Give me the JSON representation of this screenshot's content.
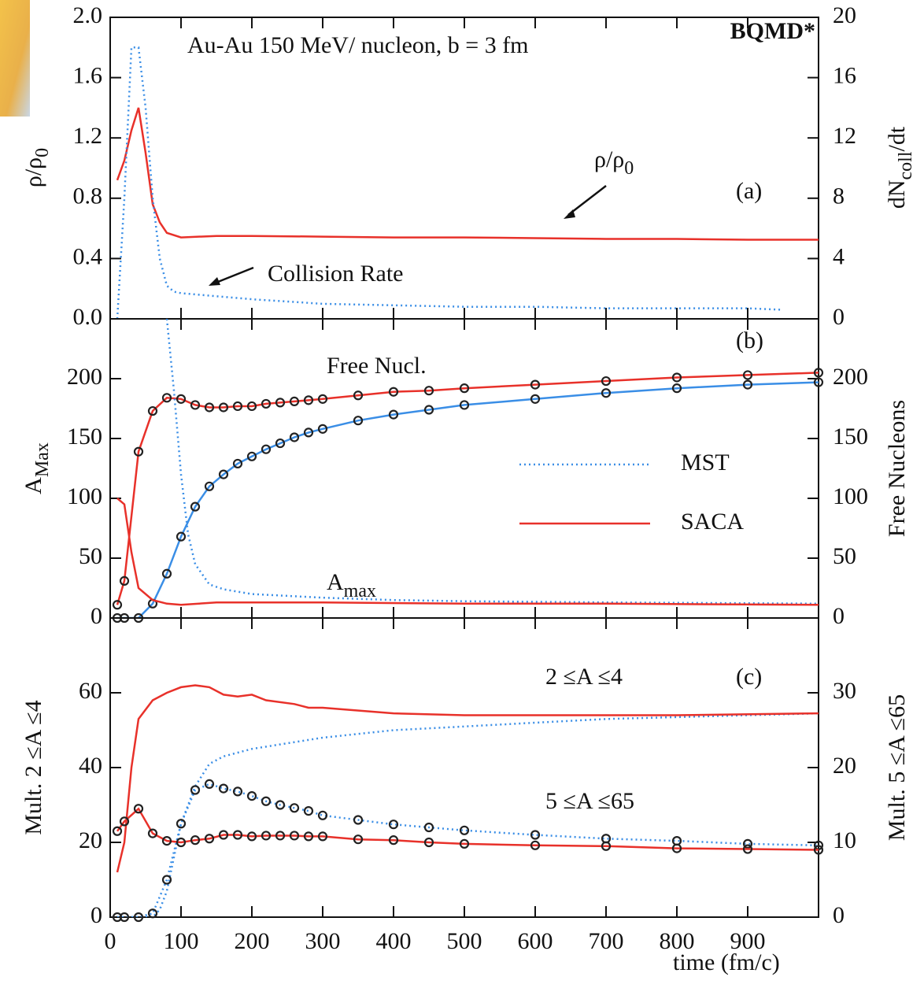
{
  "chart_data": [
    {
      "type": "line",
      "panel": "(a)",
      "title": "Au-Au 150 MeV/ nucleon, b = 3 fm",
      "badge": "BQMD*",
      "ylabel": [
        "ρ/ρ",
        "0"
      ],
      "y2label": [
        "dN",
        "coll",
        "/dt"
      ],
      "xlim": [
        0,
        1000
      ],
      "ylim": [
        0,
        2
      ],
      "yticks": [
        {
          "value": 0,
          "label": "0.0"
        },
        0.4,
        0.8,
        1.2,
        1.6,
        {
          "value": 2,
          "label": "2.0"
        }
      ],
      "y2lim": [
        0,
        20
      ],
      "y2ticks": [
        0,
        4,
        8,
        12,
        16,
        20
      ],
      "annotations": [
        [
          "ρ/ρ",
          "0"
        ],
        [
          "Collision Rate"
        ]
      ],
      "series": [
        {
          "color": "#e8312a",
          "style": "solid",
          "markers": false,
          "x": [
            10,
            20,
            30,
            40,
            50,
            60,
            70,
            80,
            100,
            150,
            200,
            300,
            400,
            500,
            600,
            700,
            800,
            900,
            1000
          ],
          "values": [
            0.92,
            1.05,
            1.25,
            1.4,
            1.1,
            0.76,
            0.64,
            0.57,
            0.54,
            0.55,
            0.55,
            0.545,
            0.54,
            0.54,
            0.535,
            0.53,
            0.53,
            0.525,
            0.525
          ]
        },
        {
          "color": "#3a8ee6",
          "style": "dotted",
          "markers": false,
          "axis": "y2",
          "x": [
            10,
            20,
            30,
            40,
            50,
            60,
            70,
            80,
            90,
            100,
            150,
            200,
            300,
            400,
            500,
            600,
            700,
            800,
            900,
            950
          ],
          "values": [
            0,
            8,
            18,
            18,
            14,
            8,
            4,
            2.2,
            1.8,
            1.7,
            1.5,
            1.3,
            1.0,
            0.9,
            0.8,
            0.8,
            0.7,
            0.7,
            0.7,
            0.6
          ]
        }
      ]
    },
    {
      "type": "line",
      "panel": "(b)",
      "ylabel": [
        "A",
        "Max"
      ],
      "y2label": [
        "Free Nucleons"
      ],
      "xlim": [
        0,
        1000
      ],
      "ylim": [
        0,
        250
      ],
      "yticks": [
        0,
        50,
        100,
        150,
        200
      ],
      "y2lim": [
        0,
        250
      ],
      "y2ticks": [
        0,
        50,
        100,
        150,
        200
      ],
      "annotations": [
        [
          "Free Nucl."
        ],
        [
          "A",
          "max"
        ]
      ],
      "legend": [
        {
          "name": "MST",
          "color": "#3a8ee6",
          "style": "dotted"
        },
        {
          "name": "SACA",
          "color": "#e8312a",
          "style": "solid"
        }
      ],
      "series": [
        {
          "color": "#3a8ee6",
          "style": "solid",
          "markers": true,
          "x": [
            10,
            20,
            40,
            60,
            80,
            100,
            120,
            140,
            160,
            180,
            200,
            220,
            240,
            260,
            280,
            300,
            350,
            400,
            450,
            500,
            600,
            700,
            800,
            900,
            1000
          ],
          "values": [
            0,
            0,
            0,
            12,
            37,
            68,
            93,
            110,
            120,
            129,
            135,
            141,
            146,
            151,
            155,
            158,
            165,
            170,
            174,
            178,
            183,
            188,
            192,
            195,
            197
          ]
        },
        {
          "color": "#e8312a",
          "style": "solid",
          "markers": true,
          "x": [
            10,
            20,
            40,
            60,
            80,
            100,
            120,
            140,
            160,
            180,
            200,
            220,
            240,
            260,
            280,
            300,
            350,
            400,
            450,
            500,
            600,
            700,
            800,
            900,
            1000
          ],
          "values": [
            11,
            31,
            139,
            173,
            184,
            183,
            178,
            176,
            176,
            177,
            177,
            179,
            180,
            181,
            182,
            183,
            186,
            189,
            190,
            192,
            195,
            198,
            201,
            203,
            205
          ]
        },
        {
          "color": "#3a8ee6",
          "style": "dotted",
          "markers": false,
          "axis": "y2",
          "x": [
            80,
            90,
            100,
            110,
            120,
            140,
            160,
            200,
            300,
            400,
            500,
            700,
            1000
          ],
          "values": [
            250,
            190,
            120,
            70,
            45,
            28,
            24,
            20,
            17,
            15,
            14,
            13,
            12
          ]
        },
        {
          "color": "#e8312a",
          "style": "solid",
          "markers": false,
          "axis": "y2",
          "x": [
            10,
            20,
            30,
            40,
            60,
            80,
            100,
            150,
            200,
            300,
            500,
            700,
            1000
          ],
          "values": [
            100,
            95,
            55,
            25,
            15,
            12,
            11,
            13,
            13,
            13,
            12,
            12,
            11
          ]
        }
      ]
    },
    {
      "type": "line",
      "panel": "(c)",
      "ylabel": [
        "Mult. 2 ≤A ≤4"
      ],
      "y2label": [
        "Mult. 5 ≤A ≤65"
      ],
      "xlabel": "time (fm/c)",
      "xlim": [
        0,
        1000
      ],
      "xticks": [
        0,
        100,
        200,
        300,
        400,
        500,
        600,
        700,
        800,
        900
      ],
      "ylim": [
        0,
        80
      ],
      "yticks": [
        0,
        20,
        40,
        60
      ],
      "y2lim": [
        0,
        40
      ],
      "y2ticks": [
        0,
        10,
        20,
        30
      ],
      "annotations": [
        [
          "2 ≤A ≤4"
        ],
        [
          "5 ≤A ≤65"
        ]
      ],
      "series": [
        {
          "color": "#3a8ee6",
          "style": "dotted",
          "markers": false,
          "x": [
            10,
            40,
            60,
            70,
            80,
            90,
            100,
            120,
            140,
            160,
            200,
            300,
            400,
            500,
            600,
            700,
            800,
            900,
            1000
          ],
          "values": [
            0,
            0,
            0,
            2,
            7,
            16,
            25,
            35,
            41,
            43,
            45,
            48,
            50,
            51,
            52,
            53,
            53.5,
            54,
            54.5
          ]
        },
        {
          "color": "#e8312a",
          "style": "solid",
          "markers": false,
          "x": [
            10,
            20,
            30,
            40,
            60,
            80,
            100,
            120,
            140,
            160,
            180,
            200,
            220,
            260,
            280,
            300,
            400,
            500,
            600,
            800,
            1000
          ],
          "values": [
            12,
            20,
            40,
            53,
            58,
            60,
            61.5,
            62,
            61.5,
            59.5,
            59,
            59.5,
            58,
            57,
            56,
            56,
            54.5,
            54,
            54,
            54,
            54.5
          ]
        },
        {
          "color": "#3a8ee6",
          "style": "dotted",
          "markers": true,
          "axis": "y2",
          "x": [
            10,
            20,
            40,
            60,
            80,
            100,
            120,
            140,
            160,
            180,
            200,
            220,
            240,
            260,
            280,
            300,
            350,
            400,
            450,
            500,
            600,
            700,
            800,
            900,
            1000
          ],
          "values": [
            0,
            0,
            0,
            0.5,
            5,
            12.5,
            17,
            17.8,
            17.2,
            16.8,
            16.2,
            15.5,
            15,
            14.6,
            14.2,
            13.6,
            13,
            12.4,
            12,
            11.6,
            11,
            10.5,
            10.2,
            9.8,
            9.6
          ]
        },
        {
          "color": "#e8312a",
          "style": "solid",
          "markers": true,
          "axis": "y2",
          "x": [
            10,
            20,
            40,
            60,
            80,
            100,
            120,
            140,
            160,
            180,
            200,
            220,
            240,
            260,
            280,
            300,
            350,
            400,
            450,
            500,
            600,
            700,
            800,
            900,
            1000
          ],
          "values": [
            11.5,
            12.8,
            14.5,
            11.2,
            10.2,
            10,
            10.3,
            10.5,
            11,
            11,
            10.8,
            10.9,
            10.9,
            10.9,
            10.8,
            10.8,
            10.4,
            10.3,
            10,
            9.8,
            9.6,
            9.5,
            9.2,
            9.1,
            9
          ]
        }
      ]
    }
  ]
}
